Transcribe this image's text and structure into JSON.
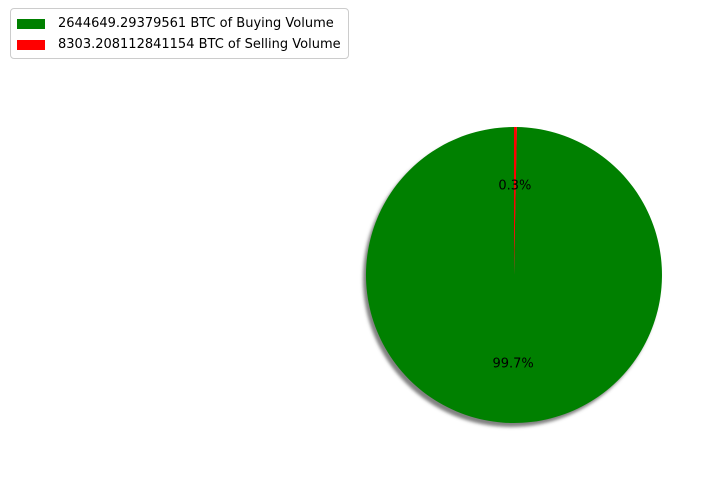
{
  "chart_data": {
    "type": "pie",
    "title": "",
    "legend_position": "top-left",
    "shadow": true,
    "start_angle_deg": 90,
    "slices": [
      {
        "label": "2644649.29379561 BTC of Buying Volume",
        "value": 2644649.29379561,
        "percent_label": "99.7%",
        "color": "#008000"
      },
      {
        "label": "8303.208112841154 BTC of Selling Volume",
        "value": 8303.208112841154,
        "percent_label": "0.3%",
        "color": "#ff0000"
      }
    ]
  }
}
